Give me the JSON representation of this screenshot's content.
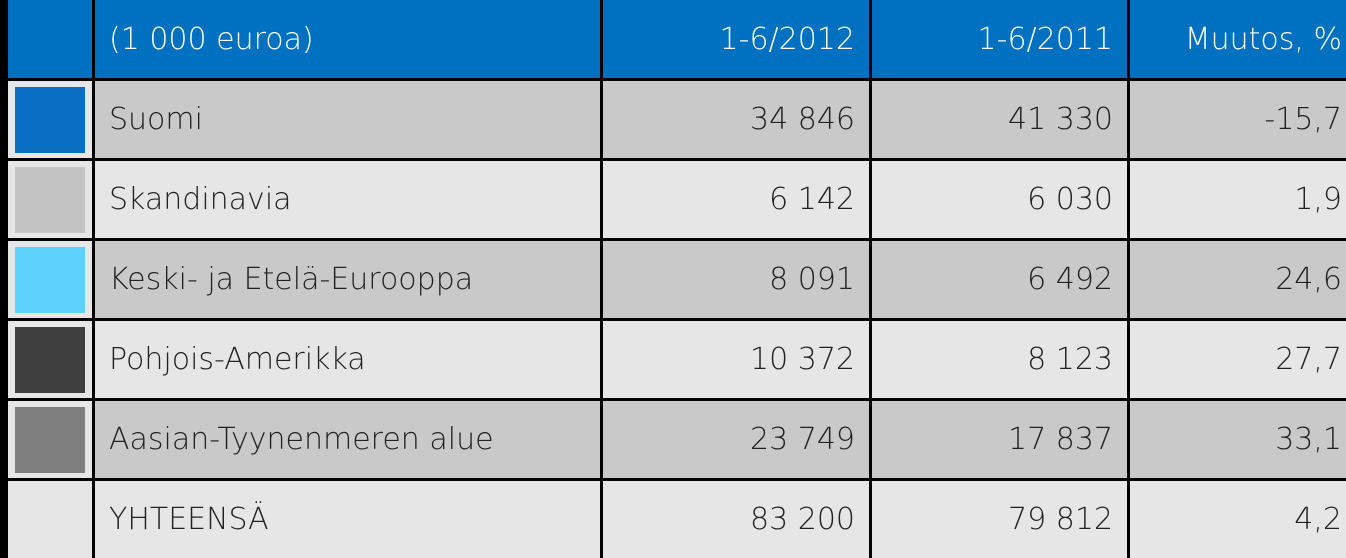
{
  "table": {
    "header": [
      "(1 000 euroa)",
      "1-6/2012",
      "1-6/2011",
      "Muutos, %"
    ],
    "rows": [
      {
        "color": "#0a6fc4",
        "cells": [
          "Suomi",
          "34 846",
          "41 330",
          "-15,7"
        ]
      },
      {
        "color": "#c4c4c4",
        "cells": [
          "Skandinavia",
          "6 142",
          "6 030",
          "1,9"
        ]
      },
      {
        "color": "#5cd2fc",
        "cells": [
          "Keski- ja Etelä-Eurooppa",
          "8 091",
          "6 492",
          "24,6"
        ]
      },
      {
        "color": "#404040",
        "cells": [
          "Pohjois-Amerikka",
          "10 372",
          "8 123",
          "27,7"
        ]
      },
      {
        "color": "#7f7f7f",
        "cells": [
          "Aasian-Tyynenmeren alue",
          "23 749",
          "17 837",
          "33,1"
        ]
      },
      {
        "cells": [
          "YHTEENSÄ",
          "83 200",
          "79 812",
          "4,2"
        ]
      }
    ]
  }
}
